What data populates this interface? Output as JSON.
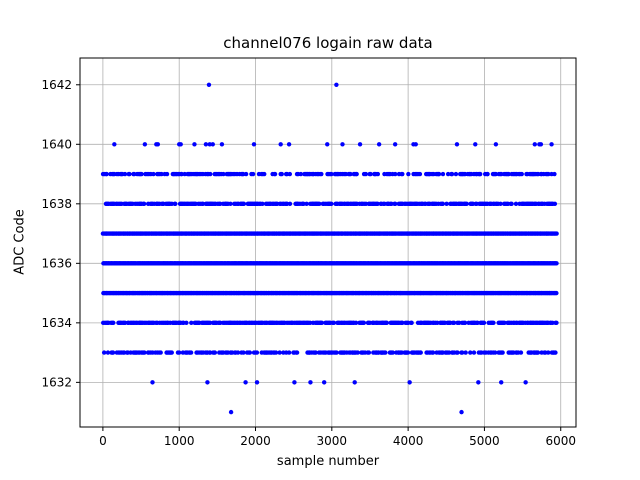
{
  "chart_data": {
    "type": "scatter",
    "title": "channel076 logain raw data",
    "xlabel": "sample number",
    "ylabel": "ADC Code",
    "xlim": [
      -300,
      6200
    ],
    "ylim": [
      1630.5,
      1642.9
    ],
    "xticks": [
      0,
      1000,
      2000,
      3000,
      4000,
      5000,
      6000
    ],
    "yticks": [
      1632,
      1634,
      1636,
      1638,
      1640,
      1642
    ],
    "grid": true,
    "marker_color": "#0000ff",
    "x_extent": [
      0,
      5940
    ],
    "series": [
      {
        "dense_levels": [
          {
            "y": 1633,
            "density": 0.5
          },
          {
            "y": 1634,
            "density": 0.65
          },
          {
            "y": 1635,
            "density": 1.0
          },
          {
            "y": 1636,
            "density": 1.0
          },
          {
            "y": 1637,
            "density": 1.0
          },
          {
            "y": 1638,
            "density": 0.65
          },
          {
            "y": 1639,
            "density": 0.45
          }
        ],
        "sparse_points": [
          [
            150,
            1640
          ],
          [
            550,
            1640
          ],
          [
            700,
            1640
          ],
          [
            720,
            1640
          ],
          [
            1000,
            1640
          ],
          [
            1020,
            1640
          ],
          [
            1200,
            1640
          ],
          [
            1350,
            1640
          ],
          [
            1400,
            1640
          ],
          [
            1440,
            1640
          ],
          [
            1560,
            1640
          ],
          [
            1980,
            1640
          ],
          [
            2330,
            1640
          ],
          [
            2440,
            1640
          ],
          [
            2940,
            1640
          ],
          [
            3140,
            1640
          ],
          [
            3370,
            1640
          ],
          [
            3620,
            1640
          ],
          [
            3830,
            1640
          ],
          [
            4070,
            1640
          ],
          [
            4100,
            1640
          ],
          [
            4640,
            1640
          ],
          [
            4880,
            1640
          ],
          [
            5150,
            1640
          ],
          [
            5660,
            1640
          ],
          [
            5720,
            1640
          ],
          [
            5740,
            1640
          ],
          [
            5880,
            1640
          ],
          [
            1390,
            1642
          ],
          [
            3060,
            1642
          ],
          [
            650,
            1632
          ],
          [
            1370,
            1632
          ],
          [
            1870,
            1632
          ],
          [
            2020,
            1632
          ],
          [
            2510,
            1632
          ],
          [
            2720,
            1632
          ],
          [
            2900,
            1632
          ],
          [
            3300,
            1632
          ],
          [
            4020,
            1632
          ],
          [
            4920,
            1632
          ],
          [
            5220,
            1632
          ],
          [
            5540,
            1632
          ],
          [
            1680,
            1631
          ],
          [
            4700,
            1631
          ]
        ]
      }
    ]
  }
}
